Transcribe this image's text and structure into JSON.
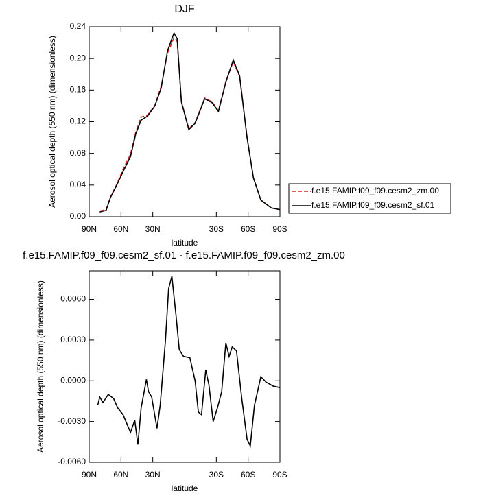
{
  "chart_data": [
    {
      "type": "line",
      "title": "DJF",
      "xlabel": "latitude",
      "ylabel": "Aerosol optical depth (550 nm) (dimensionless)",
      "x": [
        80,
        74,
        70,
        64,
        58,
        51,
        46,
        41,
        35,
        28,
        22,
        16,
        10,
        7,
        3,
        -4,
        -10,
        -19,
        -26,
        -32,
        -39,
        -46,
        -52,
        -59,
        -65,
        -72,
        -82,
        -90
      ],
      "series": [
        {
          "name": "f.e15.FAMIP.f09_f09.cesm2_zm.00",
          "color": "#d62020",
          "dash": true,
          "values": [
            0.007,
            0.009,
            0.025,
            0.041,
            0.06,
            0.079,
            0.107,
            0.126,
            0.128,
            0.141,
            0.165,
            0.207,
            0.226,
            0.222,
            0.146,
            0.111,
            0.119,
            0.15,
            0.145,
            0.134,
            0.171,
            0.196,
            0.177,
            0.1,
            0.049,
            0.021,
            0.011,
            0.009
          ]
        },
        {
          "name": "f.e15.FAMIP.f09_f09.cesm2_sf.01",
          "color": "#000000",
          "dash": false,
          "values": [
            0.006,
            0.008,
            0.024,
            0.04,
            0.057,
            0.076,
            0.105,
            0.122,
            0.127,
            0.14,
            0.163,
            0.21,
            0.232,
            0.225,
            0.145,
            0.11,
            0.118,
            0.149,
            0.144,
            0.133,
            0.17,
            0.198,
            0.178,
            0.1,
            0.049,
            0.021,
            0.011,
            0.009
          ]
        }
      ],
      "xlim": [
        90,
        -90
      ],
      "xticks": [
        {
          "value": 90,
          "label": "90N"
        },
        {
          "value": 60,
          "label": "60N"
        },
        {
          "value": 30,
          "label": "30N"
        },
        {
          "value": -30,
          "label": "30S"
        },
        {
          "value": -60,
          "label": "60S"
        },
        {
          "value": -90,
          "label": "90S"
        }
      ],
      "ylim": [
        0,
        0.24
      ],
      "yticks": [
        {
          "value": 0,
          "label": "0.00"
        },
        {
          "value": 0.04,
          "label": "0.04"
        },
        {
          "value": 0.08,
          "label": "0.08"
        },
        {
          "value": 0.12,
          "label": "0.12"
        },
        {
          "value": 0.16,
          "label": "0.16"
        },
        {
          "value": 0.2,
          "label": "0.20"
        },
        {
          "value": 0.24,
          "label": "0.24"
        }
      ],
      "legend": "outside-right"
    },
    {
      "type": "line",
      "title": "f.e15.FAMIP.f09_f09.cesm2_sf.01 - f.e15.FAMIP.f09_f09.cesm2_zm.00",
      "xlabel": "latitude",
      "ylabel": "Aerosol optical depth (550 nm) (dimensionless)",
      "x": [
        82,
        80,
        77,
        72,
        67,
        63,
        58,
        51,
        47,
        44,
        41,
        36,
        34,
        31,
        26,
        23,
        18,
        15,
        12,
        8,
        5,
        1,
        -5,
        -10,
        -13,
        -16,
        -20,
        -23,
        -27,
        -31,
        -35,
        -39,
        -42,
        -45,
        -49,
        -54,
        -59,
        -62,
        -66,
        -72,
        -77,
        -84,
        -90
      ],
      "series": [
        {
          "color": "#000000",
          "dash": false,
          "values": [
            -0.0018,
            -0.0012,
            -0.0016,
            -0.001,
            -0.0013,
            -0.002,
            -0.0025,
            -0.0038,
            -0.0029,
            -0.0047,
            -0.002,
            0.0001,
            -0.0008,
            -0.0012,
            -0.0035,
            -0.0018,
            0.003,
            0.0068,
            0.0077,
            0.0048,
            0.0023,
            0.0018,
            0.0017,
            0,
            -0.0023,
            -0.0025,
            0.0008,
            -0.0003,
            -0.003,
            -0.002,
            -0.0008,
            0.0028,
            0.0018,
            0.0025,
            0.0022,
            -0.0013,
            -0.0043,
            -0.0048,
            -0.0018,
            0.0003,
            -0.0001,
            -0.0004,
            -0.0005
          ]
        }
      ],
      "xlim": [
        90,
        -90
      ],
      "xticks": [
        {
          "value": 90,
          "label": "90N"
        },
        {
          "value": 60,
          "label": "60N"
        },
        {
          "value": 30,
          "label": "30N"
        },
        {
          "value": -30,
          "label": "30S"
        },
        {
          "value": -60,
          "label": "60S"
        },
        {
          "value": -90,
          "label": "90S"
        }
      ],
      "ylim": [
        -0.006,
        0.0081
      ],
      "yticks": [
        {
          "value": -0.006,
          "label": "-0.0060"
        },
        {
          "value": -0.003,
          "label": "-0.0030"
        },
        {
          "value": 0,
          "label": "0.0000"
        },
        {
          "value": 0.003,
          "label": "0.0030"
        },
        {
          "value": 0.006,
          "label": "0.0060"
        }
      ]
    }
  ]
}
